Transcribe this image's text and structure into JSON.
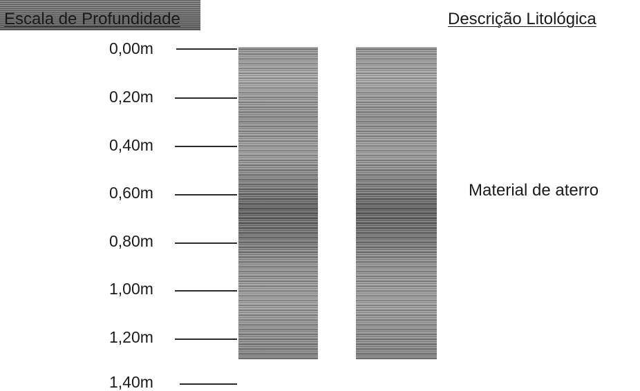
{
  "headers": {
    "depth_scale": "Escala de Profundidade",
    "lithology": "Descrição Litológica"
  },
  "depth_labels": [
    "0,00m",
    "0,20m",
    "0,40m",
    "0,60m",
    "0,80m",
    "1,00m",
    "1,20m",
    "1,40m"
  ],
  "layers": [
    {
      "description": "Material de aterro"
    }
  ]
}
